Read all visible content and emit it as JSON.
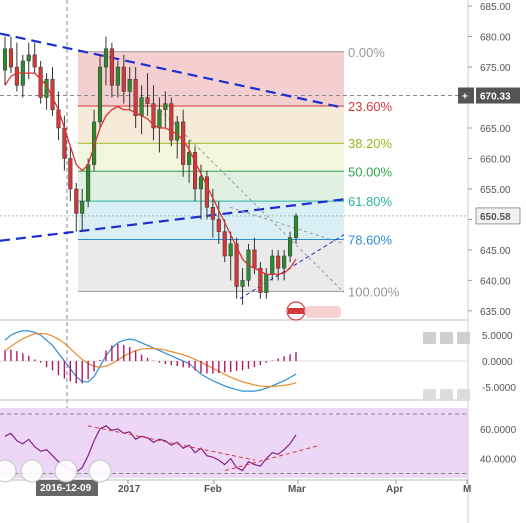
{
  "colors": {
    "background": "#ffffff",
    "candle_up": "#2f8a2f",
    "candle_down": "#d23a3a",
    "ma_line": "#e03030",
    "trendline": "#1d2fd0",
    "macd_line": "#2a8fd8",
    "signal_line": "#e98a2a",
    "macd_hist": "#b0185f",
    "rsi_line": "#8a1f8a",
    "rsi_bg": "#ecd8f6",
    "price_tag": "#555555",
    "fib_0": "#f2c7c7",
    "fib_236": "#f4e6d2",
    "fib_382": "#eef5d6",
    "fib_50": "#dcefdc",
    "fib_618": "#d4ecf2",
    "fib_786": "#e6e6e6"
  },
  "chart_data": [
    {
      "type": "candlestick",
      "panel": "price",
      "yaxis_ticks": [
        "685.00",
        "680.00",
        "675.00",
        "670.00",
        "665.00",
        "660.00",
        "655.00",
        "650.00",
        "645.00",
        "640.00",
        "635.00"
      ],
      "ylim": [
        633.5,
        686
      ],
      "xaxis_labels": [
        "2016-12-09",
        "2017",
        "Feb",
        "Mar",
        "Apr",
        "M"
      ],
      "price_tags": [
        {
          "label": "670.33",
          "value": 670.33,
          "style": "dark",
          "has_plus": true
        },
        {
          "label": "650.58",
          "value": 650.58,
          "style": "light",
          "has_plus": false
        }
      ],
      "fibonacci": {
        "levels": [
          {
            "label": "0.00%",
            "value": 677.5,
            "color": "#999999"
          },
          {
            "label": "23.60%",
            "value": 668.6,
            "color": "#d23a3a"
          },
          {
            "label": "38.20%",
            "value": 662.5,
            "color": "#9cb820"
          },
          {
            "label": "50.00%",
            "value": 657.9,
            "color": "#2fa64a"
          },
          {
            "label": "61.80%",
            "value": 653.0,
            "color": "#27b5a0"
          },
          {
            "label": "78.60%",
            "value": 646.7,
            "color": "#2a8fd8"
          },
          {
            "label": "100.00%",
            "value": 638.2,
            "color": "#999999"
          }
        ]
      },
      "ohlc": [
        [
          674.5,
          680,
          672,
          678
        ],
        [
          678,
          680,
          674,
          675
        ],
        [
          675,
          679,
          671,
          672
        ],
        [
          672,
          677,
          670,
          676
        ],
        [
          676,
          679,
          673,
          677
        ],
        [
          677,
          679,
          674,
          675
        ],
        [
          675,
          676,
          669,
          670
        ],
        [
          670,
          674,
          668,
          673
        ],
        [
          673,
          675,
          667,
          668
        ],
        [
          668,
          671,
          663,
          665
        ],
        [
          665,
          667,
          658,
          660
        ],
        [
          660,
          662,
          653,
          655
        ],
        [
          655,
          656,
          648,
          651
        ],
        [
          651,
          655,
          648,
          653
        ],
        [
          653,
          660,
          652,
          659
        ],
        [
          659,
          668,
          658,
          666
        ],
        [
          666,
          677,
          665,
          675
        ],
        [
          675,
          680,
          672,
          678
        ],
        [
          678,
          679,
          670,
          672
        ],
        [
          672,
          676,
          670,
          675
        ],
        [
          675,
          677,
          669,
          671
        ],
        [
          671,
          675,
          668,
          673
        ],
        [
          673,
          675,
          665,
          667
        ],
        [
          667,
          672,
          664,
          670
        ],
        [
          670,
          674,
          667,
          669
        ],
        [
          669,
          672,
          663,
          665
        ],
        [
          665,
          670,
          661,
          668
        ],
        [
          668,
          671,
          665,
          669
        ],
        [
          669,
          670,
          662,
          663
        ],
        [
          663,
          667,
          660,
          666
        ],
        [
          666,
          668,
          657,
          659
        ],
        [
          659,
          663,
          656,
          661
        ],
        [
          661,
          662,
          653,
          655
        ],
        [
          655,
          659,
          650,
          657
        ],
        [
          657,
          658,
          650,
          652
        ],
        [
          652,
          655,
          647,
          650
        ],
        [
          650,
          653,
          646,
          648
        ],
        [
          648,
          650,
          643,
          644
        ],
        [
          644,
          648,
          640,
          646
        ],
        [
          646,
          647,
          637,
          639
        ],
        [
          639,
          642,
          636,
          640
        ],
        [
          640,
          646,
          639,
          645
        ],
        [
          645,
          647,
          641,
          642
        ],
        [
          642,
          643,
          637,
          638
        ],
        [
          638,
          642,
          637,
          641
        ],
        [
          641,
          645,
          640,
          644
        ],
        [
          644,
          645,
          640,
          642
        ],
        [
          642,
          645,
          640,
          644
        ],
        [
          644,
          648,
          643,
          647
        ],
        [
          647,
          651,
          646,
          650.58
        ]
      ],
      "ma": [
        672,
        673.5,
        674,
        674,
        674,
        674,
        673,
        672,
        670,
        668,
        665,
        662,
        659,
        658,
        659,
        662,
        665,
        667,
        668,
        668.5,
        668,
        668,
        667.5,
        667,
        666.5,
        665.5,
        665,
        665,
        664.5,
        664,
        663,
        661.5,
        659.5,
        657.5,
        655.5,
        653.5,
        651.5,
        649.5,
        647.5,
        645.5,
        643.5,
        642.5,
        642,
        641.5,
        641,
        641,
        641,
        641.2,
        642,
        643.5
      ]
    },
    {
      "type": "line",
      "panel": "macd",
      "yaxis_ticks": [
        "5.0000",
        "0.0000",
        "-5.0000"
      ],
      "ylim": [
        -7.5,
        7.5
      ],
      "series": [
        {
          "color_key": "macd_line",
          "values": [
            4,
            5,
            5.5,
            5.8,
            5.8,
            5.5,
            5,
            4,
            3,
            1.5,
            0,
            -1.5,
            -3,
            -4,
            -4,
            -3,
            -1,
            1,
            2.5,
            3.5,
            4,
            4.2,
            4,
            3.5,
            3,
            2.5,
            2,
            1.5,
            1,
            0.5,
            0,
            -0.5,
            -1.5,
            -2.5,
            -3.2,
            -3.8,
            -4.3,
            -4.8,
            -5.2,
            -5.5,
            -5.8,
            -5.8,
            -5.8,
            -5.6,
            -5.2,
            -4.8,
            -4.3,
            -3.8,
            -3.2,
            -2.5
          ]
        },
        {
          "color_key": "signal_line",
          "values": [
            2,
            2.8,
            3.6,
            4.3,
            4.8,
            5.2,
            5.3,
            5.2,
            4.8,
            4.2,
            3.4,
            2.4,
            1.3,
            0.3,
            -0.5,
            -1,
            -1.2,
            -1,
            -0.5,
            0.2,
            0.9,
            1.5,
            2,
            2.3,
            2.4,
            2.4,
            2.3,
            2.1,
            1.8,
            1.5,
            1.2,
            0.8,
            0.3,
            -0.2,
            -0.8,
            -1.4,
            -2,
            -2.6,
            -3.1,
            -3.6,
            -4,
            -4.3,
            -4.6,
            -4.8,
            -4.9,
            -4.9,
            -4.8,
            -4.7,
            -4.5,
            -4.2
          ]
        },
        {
          "color_key": "macd_hist",
          "kind": "histogram",
          "values": [
            2,
            2.2,
            1.9,
            1.5,
            1,
            0.3,
            -0.3,
            -1.2,
            -1.8,
            -2.7,
            -3.4,
            -3.9,
            -4.3,
            -4.3,
            -3.5,
            -2,
            0.2,
            2,
            3,
            3.3,
            3.1,
            2.7,
            2,
            1.2,
            0.6,
            0.1,
            -0.3,
            -0.6,
            -0.8,
            -1,
            -1.2,
            -1.3,
            -1.8,
            -2.3,
            -2.4,
            -2.4,
            -2.3,
            -2.2,
            -2.1,
            -1.9,
            -1.8,
            -1.5,
            -1.2,
            -0.8,
            -0.3,
            0.1,
            0.5,
            0.9,
            1.3,
            1.7
          ]
        }
      ]
    },
    {
      "type": "line",
      "panel": "rsi",
      "yaxis_ticks": [
        "60.0000",
        "40.0000"
      ],
      "ylim": [
        27,
        74
      ],
      "series": [
        {
          "color_key": "rsi_line",
          "values": [
            55,
            57,
            52,
            50,
            53,
            48,
            45,
            46,
            42,
            38,
            35,
            33,
            31,
            34,
            42,
            52,
            60,
            62,
            59,
            60,
            57,
            58,
            53,
            55,
            54,
            51,
            53,
            52,
            49,
            51,
            47,
            49,
            44,
            47,
            42,
            41,
            39,
            36,
            40,
            34,
            32,
            38,
            36,
            35,
            40,
            44,
            43,
            46,
            50,
            56
          ]
        }
      ],
      "guides": [
        50
      ]
    }
  ]
}
